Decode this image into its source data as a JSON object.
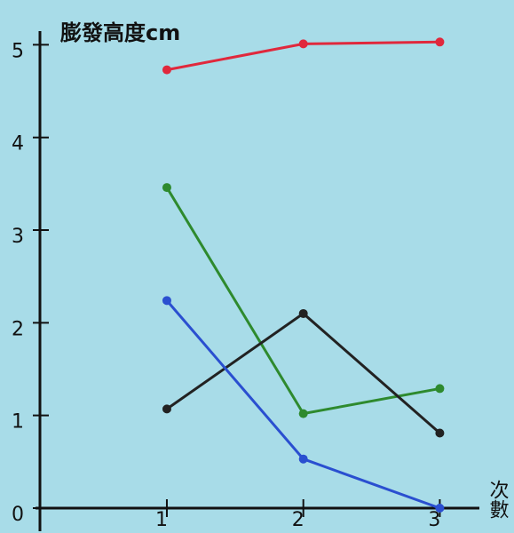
{
  "chart_data": {
    "type": "line",
    "title": "膨發高度cm",
    "x_label": "次數",
    "x": [
      1,
      2,
      3
    ],
    "xlim": [
      0.07,
      3.29
    ],
    "xticks": [
      1,
      2,
      3
    ],
    "ylim": [
      0,
      5.1
    ],
    "yticks": [
      0,
      1,
      2,
      3,
      4,
      5
    ],
    "series": [
      {
        "color": "#e0283c",
        "values": [
          4.73,
          5.01,
          5.03
        ]
      },
      {
        "color": "#2e8a2e",
        "values": [
          3.46,
          1.02,
          1.29
        ]
      },
      {
        "color": "#222222",
        "values": [
          1.07,
          2.1,
          0.81
        ]
      },
      {
        "color": "#2a4fd0",
        "values": [
          2.24,
          0.53,
          0
        ]
      }
    ]
  }
}
